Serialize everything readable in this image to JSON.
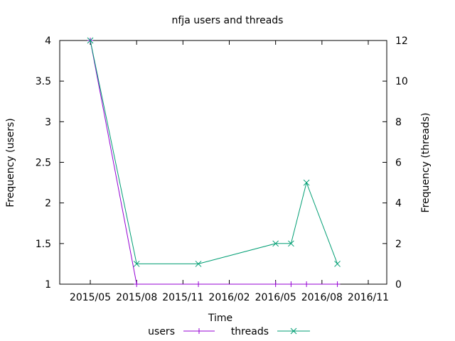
{
  "chart_data": {
    "type": "line",
    "title": "nfja users and threads",
    "xlabel": "Time",
    "ylabel_left": "Frequency (users)",
    "ylabel_right": "Frequency (threads)",
    "x_ticks": [
      "2015/05",
      "2015/08",
      "2015/11",
      "2016/02",
      "2016/05",
      "2016/08",
      "2016/11"
    ],
    "y_left": {
      "range": [
        1,
        4
      ],
      "ticks": [
        "1",
        "1.5",
        "2",
        "2.5",
        "3",
        "3.5",
        "4"
      ]
    },
    "y_right": {
      "range": [
        0,
        12
      ],
      "ticks": [
        "0",
        "2",
        "4",
        "6",
        "8",
        "10",
        "12"
      ]
    },
    "grid": false,
    "legend": "bottom",
    "series": [
      {
        "name": "users",
        "axis": "left",
        "color": "#9400d3",
        "marker": "plus",
        "points": [
          {
            "x": "2015-05-01",
            "y": 4
          },
          {
            "x": "2015-08-01",
            "y": 1
          },
          {
            "x": "2015-12-01",
            "y": 1
          },
          {
            "x": "2016-05-01",
            "y": 1
          },
          {
            "x": "2016-06-01",
            "y": 1
          },
          {
            "x": "2016-07-01",
            "y": 1
          },
          {
            "x": "2016-09-01",
            "y": 1
          }
        ]
      },
      {
        "name": "threads",
        "axis": "right",
        "color": "#009e73",
        "marker": "cross",
        "points": [
          {
            "x": "2015-05-01",
            "y": 12
          },
          {
            "x": "2015-08-01",
            "y": 1
          },
          {
            "x": "2015-12-01",
            "y": 1
          },
          {
            "x": "2016-05-01",
            "y": 2
          },
          {
            "x": "2016-06-01",
            "y": 2
          },
          {
            "x": "2016-07-01",
            "y": 5
          },
          {
            "x": "2016-09-01",
            "y": 1
          }
        ]
      }
    ]
  }
}
